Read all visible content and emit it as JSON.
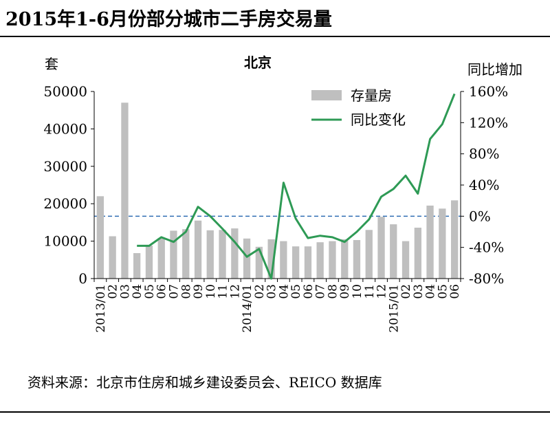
{
  "page": {
    "heading": "2015年1-6月份部分城市二手房交易量",
    "source": "资料来源：北京市住房和城乡建设委员会、REICO 数据库"
  },
  "chart_data": {
    "type": "bar",
    "title": "北京",
    "left_axis_unit": "套",
    "right_axis_unit": "同比增加",
    "categories": [
      "2013/01",
      "02",
      "03",
      "04",
      "05",
      "06",
      "07",
      "08",
      "09",
      "10",
      "11",
      "12",
      "2014/01",
      "02",
      "03",
      "04",
      "05",
      "06",
      "07",
      "08",
      "09",
      "10",
      "11",
      "12",
      "2015/01",
      "02",
      "03",
      "04",
      "05",
      "06"
    ],
    "x_tick_labels": [
      "2013/01",
      "02",
      "03",
      "04",
      "05",
      "06",
      "07",
      "08",
      "09",
      "10",
      "11",
      "12",
      "2014/01",
      "02",
      "03",
      "04",
      "05",
      "06",
      "07",
      "08",
      "09",
      "10",
      "11",
      "12",
      "2015/01",
      "02",
      "03",
      "04",
      "05",
      "06"
    ],
    "ylim_left": [
      0,
      50000
    ],
    "yticks_left": [
      "0",
      "10000",
      "20000",
      "30000",
      "40000",
      "50000"
    ],
    "ylim_right": [
      -80,
      160
    ],
    "yticks_right": [
      "-80%",
      "-40%",
      "0%",
      "40%",
      "80%",
      "120%",
      "160%"
    ],
    "reference_line_right": 0,
    "legend_position": "top-right",
    "series": [
      {
        "name": "存量房",
        "kind": "bar",
        "axis": "left",
        "color": "#bfbfbf",
        "values": [
          22000,
          11300,
          47000,
          6800,
          8800,
          10800,
          12800,
          13200,
          15500,
          12900,
          13000,
          13400,
          10700,
          8500,
          10500,
          10000,
          8600,
          8600,
          9700,
          10000,
          10500,
          10300,
          13000,
          16500,
          14500,
          10000,
          13600,
          19500,
          18700,
          20900
        ]
      },
      {
        "name": "同比变化",
        "kind": "line",
        "axis": "right",
        "color": "#2e9a55",
        "values": [
          null,
          null,
          null,
          -38,
          -38,
          -27,
          -33,
          -20,
          12,
          0,
          -16,
          -33,
          -52,
          -42,
          -80,
          43,
          -3,
          -28,
          -25,
          -27,
          -33,
          -20,
          -4,
          25,
          35,
          52,
          29,
          99,
          118,
          157
        ]
      }
    ]
  }
}
